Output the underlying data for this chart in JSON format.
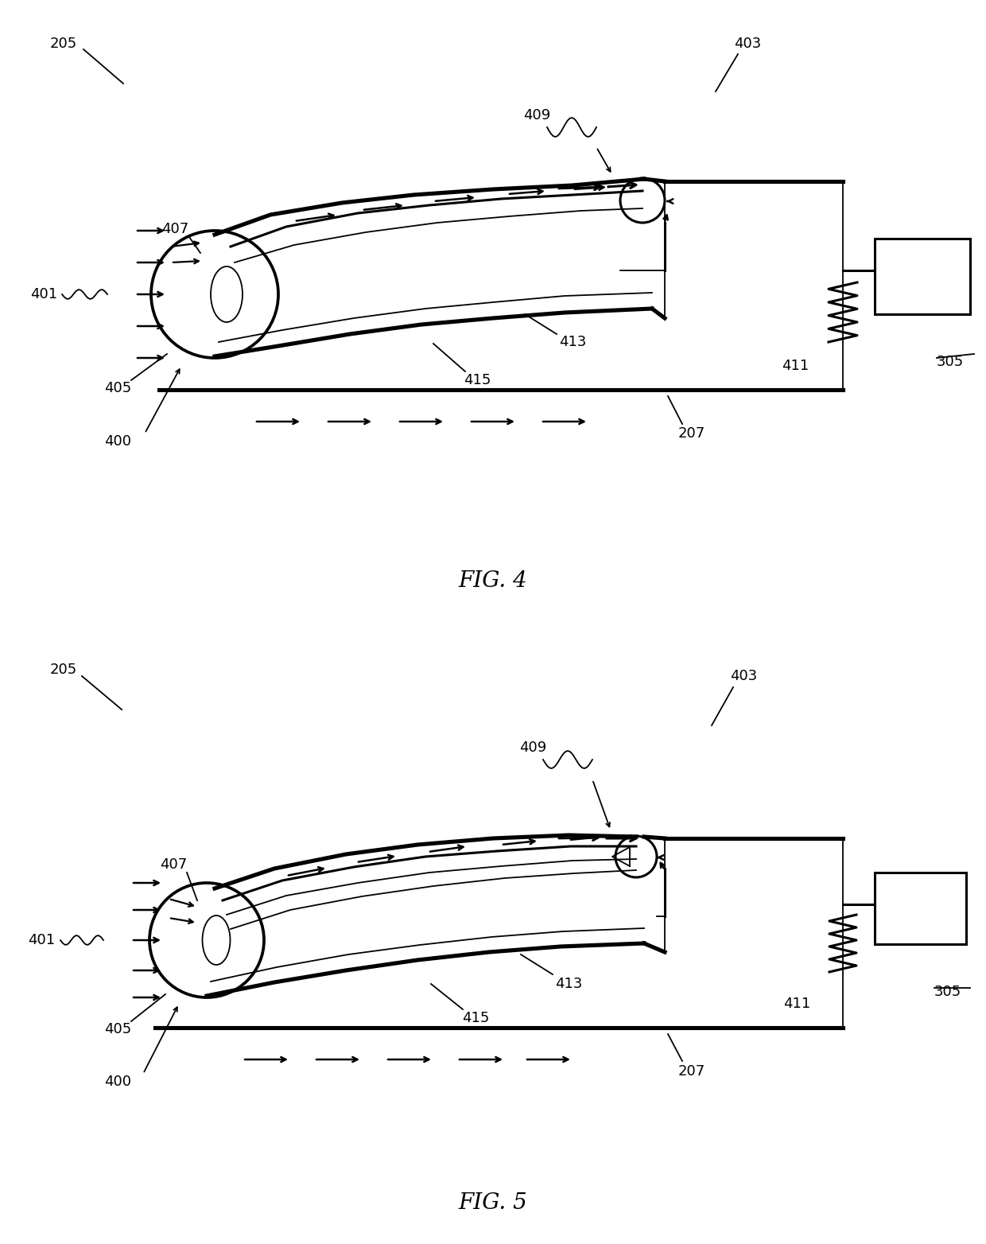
{
  "fig4_title": "FIG. 4",
  "fig5_title": "FIG. 5",
  "bg_color": "#ffffff",
  "line_color": "#000000"
}
